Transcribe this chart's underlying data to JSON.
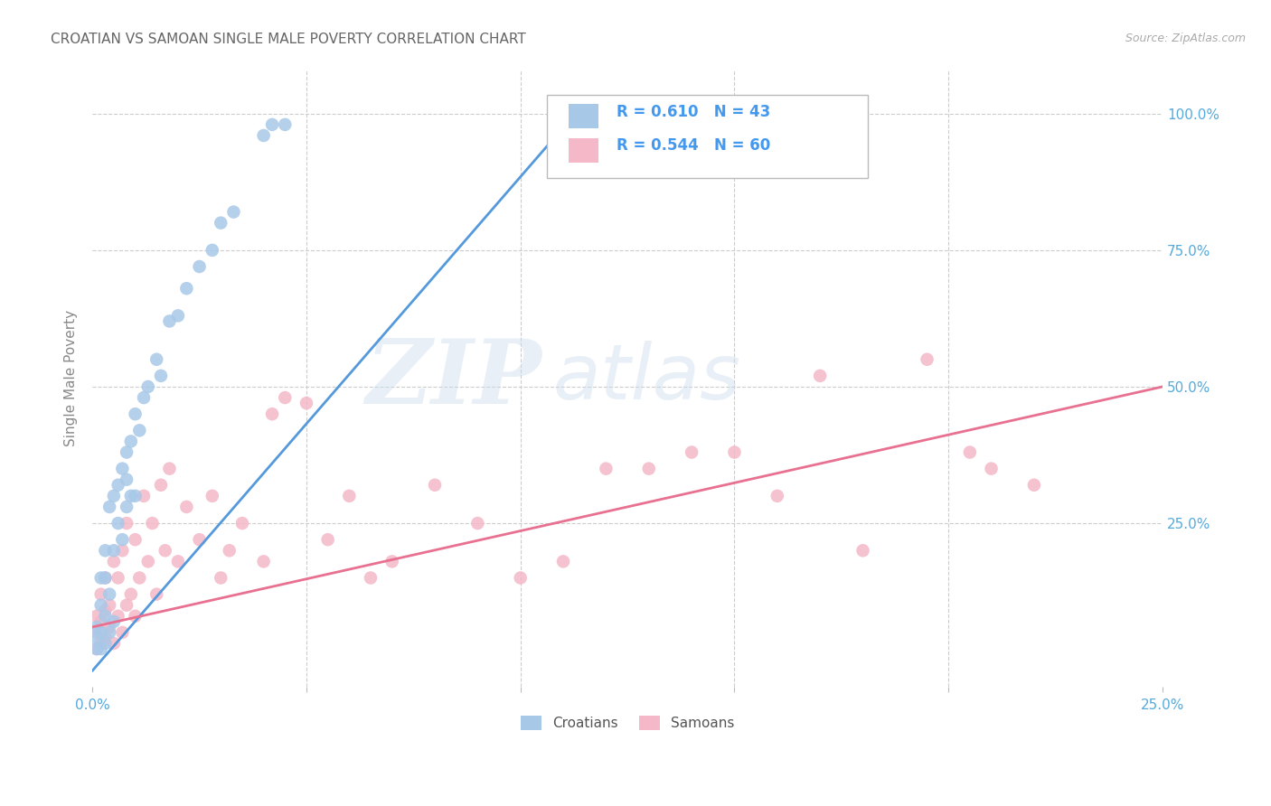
{
  "title": "CROATIAN VS SAMOAN SINGLE MALE POVERTY CORRELATION CHART",
  "source": "Source: ZipAtlas.com",
  "ylabel": "Single Male Poverty",
  "background_color": "#ffffff",
  "grid_color": "#cccccc",
  "watermark_zip": "ZIP",
  "watermark_atlas": "atlas",
  "croatian_R": 0.61,
  "croatian_N": 43,
  "samoan_R": 0.544,
  "samoan_N": 60,
  "blue_color": "#a8c8e8",
  "pink_color": "#f4b8c8",
  "blue_line_color": "#5599dd",
  "pink_line_color": "#e87090",
  "legend_text_color": "#4499ee",
  "title_color": "#666666",
  "axis_label_color": "#55aadd",
  "tick_color": "#888888",
  "croatian_x": [
    0.001,
    0.001,
    0.001,
    0.002,
    0.002,
    0.002,
    0.002,
    0.003,
    0.003,
    0.003,
    0.003,
    0.004,
    0.004,
    0.004,
    0.005,
    0.005,
    0.005,
    0.006,
    0.006,
    0.007,
    0.007,
    0.008,
    0.008,
    0.008,
    0.009,
    0.009,
    0.01,
    0.01,
    0.011,
    0.012,
    0.013,
    0.015,
    0.016,
    0.018,
    0.02,
    0.022,
    0.025,
    0.028,
    0.03,
    0.033,
    0.04,
    0.042,
    0.045
  ],
  "croatian_y": [
    0.02,
    0.04,
    0.06,
    0.02,
    0.05,
    0.1,
    0.15,
    0.03,
    0.08,
    0.15,
    0.2,
    0.05,
    0.12,
    0.28,
    0.07,
    0.2,
    0.3,
    0.25,
    0.32,
    0.22,
    0.35,
    0.28,
    0.33,
    0.38,
    0.3,
    0.4,
    0.3,
    0.45,
    0.42,
    0.48,
    0.5,
    0.55,
    0.52,
    0.62,
    0.63,
    0.68,
    0.72,
    0.75,
    0.8,
    0.82,
    0.96,
    0.98,
    0.98
  ],
  "samoan_x": [
    0.001,
    0.001,
    0.001,
    0.002,
    0.002,
    0.002,
    0.003,
    0.003,
    0.003,
    0.004,
    0.004,
    0.005,
    0.005,
    0.006,
    0.006,
    0.007,
    0.007,
    0.008,
    0.008,
    0.009,
    0.01,
    0.01,
    0.011,
    0.012,
    0.013,
    0.014,
    0.015,
    0.016,
    0.017,
    0.018,
    0.02,
    0.022,
    0.025,
    0.028,
    0.03,
    0.032,
    0.035,
    0.04,
    0.042,
    0.045,
    0.05,
    0.055,
    0.06,
    0.065,
    0.07,
    0.08,
    0.09,
    0.1,
    0.11,
    0.12,
    0.13,
    0.14,
    0.15,
    0.16,
    0.17,
    0.18,
    0.195,
    0.205,
    0.21,
    0.22
  ],
  "samoan_y": [
    0.02,
    0.05,
    0.08,
    0.03,
    0.07,
    0.12,
    0.04,
    0.09,
    0.15,
    0.06,
    0.1,
    0.03,
    0.18,
    0.08,
    0.15,
    0.05,
    0.2,
    0.1,
    0.25,
    0.12,
    0.08,
    0.22,
    0.15,
    0.3,
    0.18,
    0.25,
    0.12,
    0.32,
    0.2,
    0.35,
    0.18,
    0.28,
    0.22,
    0.3,
    0.15,
    0.2,
    0.25,
    0.18,
    0.45,
    0.48,
    0.47,
    0.22,
    0.3,
    0.15,
    0.18,
    0.32,
    0.25,
    0.15,
    0.18,
    0.35,
    0.35,
    0.38,
    0.38,
    0.3,
    0.52,
    0.2,
    0.55,
    0.38,
    0.35,
    0.32
  ],
  "blue_line_x0": 0.0,
  "blue_line_y0": -0.02,
  "blue_line_x1": 0.115,
  "blue_line_y1": 1.02,
  "pink_line_x0": 0.0,
  "pink_line_y0": 0.06,
  "pink_line_x1": 0.25,
  "pink_line_y1": 0.5,
  "xlim": [
    0.0,
    0.25
  ],
  "ylim": [
    -0.05,
    1.08
  ],
  "xticks": [
    0.0,
    0.05,
    0.1,
    0.15,
    0.2,
    0.25
  ],
  "xticklabels": [
    "0.0%",
    "",
    "",
    "",
    "",
    "25.0%"
  ],
  "yticks": [
    0.25,
    0.5,
    0.75,
    1.0
  ],
  "yticklabels": [
    "25.0%",
    "50.0%",
    "75.0%",
    "100.0%"
  ]
}
